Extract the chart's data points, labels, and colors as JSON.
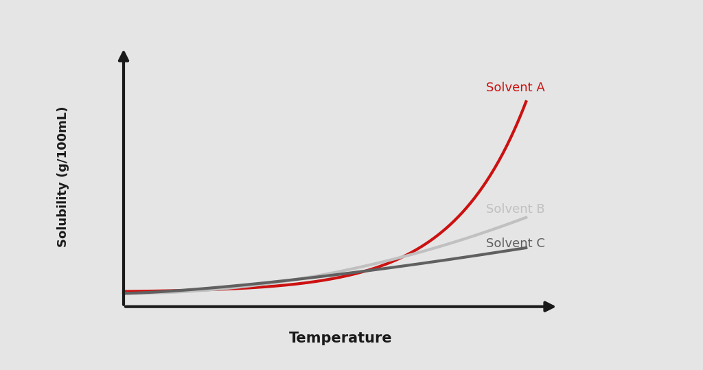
{
  "background_color": "#e5e5e5",
  "plot_bg_color": "#e5e5e5",
  "axis_color": "#1a1a1a",
  "axis_linewidth": 3.0,
  "arrow_color": "#1a1a1a",
  "ylabel": "Solubility (g/100mL)",
  "xlabel": "Temperature",
  "xlabel_fontsize": 15,
  "ylabel_fontsize": 13,
  "xlabel_fontweight": "bold",
  "ylabel_fontweight": "bold",
  "solvent_A_color": "#cc1111",
  "solvent_B_color": "#c0c0c0",
  "solvent_C_color": "#606060",
  "solvent_A_label": "Solvent A",
  "solvent_B_label": "Solvent B",
  "solvent_C_label": "Solvent C",
  "label_fontsize": 13,
  "linewidth": 3.0
}
